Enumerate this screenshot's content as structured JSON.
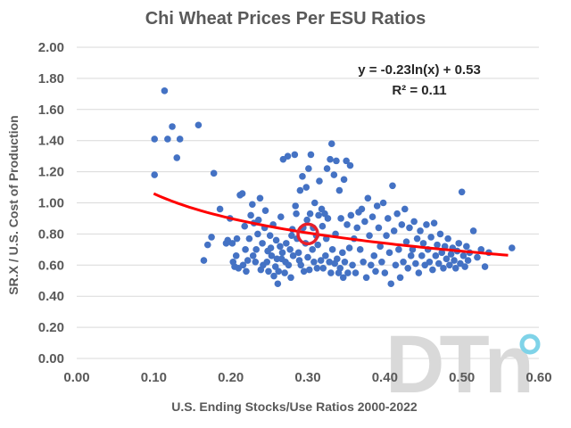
{
  "chart_data": {
    "type": "scatter",
    "title": "Chi Wheat Prices Per ESU Ratios",
    "xlabel": "U.S. Ending Stocks/Use Ratios 2000-2022",
    "ylabel": "SR.X / U.S. Cost of Production",
    "xlim": [
      0.0,
      0.6
    ],
    "ylim": [
      0.0,
      2.0
    ],
    "x_ticks": [
      "0.00",
      "0.10",
      "0.20",
      "0.30",
      "0.40",
      "0.50",
      "0.60"
    ],
    "y_ticks": [
      "0.00",
      "0.20",
      "0.40",
      "0.60",
      "0.80",
      "1.00",
      "1.20",
      "1.40",
      "1.60",
      "1.80",
      "2.00"
    ],
    "grid": {
      "horizontal": true,
      "vertical": false
    },
    "colors": {
      "points": "#4472c4",
      "trendline": "#ff0000",
      "highlight": "#e8202a",
      "gridline": "#d9d9d9",
      "logo": "#d9d9d9",
      "logo_accent": "#7fd3e8"
    },
    "annotations": {
      "equation": "y = -0.23ln(x) + 0.53",
      "r_squared": "R² = 0.11"
    },
    "trendline": {
      "type": "logarithmic",
      "a": -0.23,
      "b": 0.53,
      "x_range": [
        0.1,
        0.56
      ]
    },
    "highlight": {
      "x": 0.3,
      "y": 0.8
    },
    "logo": {
      "text": "DTn"
    },
    "points": [
      [
        0.101,
        1.41
      ],
      [
        0.101,
        1.18
      ],
      [
        0.114,
        1.72
      ],
      [
        0.118,
        1.41
      ],
      [
        0.124,
        1.49
      ],
      [
        0.13,
        1.29
      ],
      [
        0.134,
        1.41
      ],
      [
        0.158,
        1.5
      ],
      [
        0.165,
        0.63
      ],
      [
        0.17,
        0.73
      ],
      [
        0.175,
        0.78
      ],
      [
        0.178,
        1.19
      ],
      [
        0.186,
        0.96
      ],
      [
        0.194,
        0.74
      ],
      [
        0.196,
        0.76
      ],
      [
        0.199,
        0.9
      ],
      [
        0.202,
        0.74
      ],
      [
        0.203,
        0.62
      ],
      [
        0.205,
        0.59
      ],
      [
        0.207,
        0.66
      ],
      [
        0.208,
        0.77
      ],
      [
        0.21,
        0.58
      ],
      [
        0.212,
        1.05
      ],
      [
        0.215,
        1.06
      ],
      [
        0.216,
        0.6
      ],
      [
        0.218,
        0.85
      ],
      [
        0.219,
        0.7
      ],
      [
        0.22,
        0.56
      ],
      [
        0.222,
        0.63
      ],
      [
        0.224,
        0.77
      ],
      [
        0.226,
        0.92
      ],
      [
        0.228,
        0.99
      ],
      [
        0.229,
        0.66
      ],
      [
        0.23,
        0.87
      ],
      [
        0.232,
        0.62
      ],
      [
        0.233,
        0.7
      ],
      [
        0.235,
        0.8
      ],
      [
        0.236,
        0.89
      ],
      [
        0.238,
        1.03
      ],
      [
        0.239,
        0.57
      ],
      [
        0.241,
        0.74
      ],
      [
        0.242,
        0.6
      ],
      [
        0.244,
        0.84
      ],
      [
        0.245,
        0.95
      ],
      [
        0.247,
        0.62
      ],
      [
        0.248,
        0.69
      ],
      [
        0.249,
        0.56
      ],
      [
        0.251,
        0.79
      ],
      [
        0.252,
        0.71
      ],
      [
        0.253,
        0.66
      ],
      [
        0.255,
        0.86
      ],
      [
        0.256,
        0.53
      ],
      [
        0.258,
        0.59
      ],
      [
        0.259,
        0.76
      ],
      [
        0.26,
        0.64
      ],
      [
        0.261,
        0.48
      ],
      [
        0.262,
        0.56
      ],
      [
        0.264,
        0.72
      ],
      [
        0.265,
        0.91
      ],
      [
        0.266,
        0.64
      ],
      [
        0.267,
        0.68
      ],
      [
        0.268,
        1.28
      ],
      [
        0.27,
        0.55
      ],
      [
        0.271,
        0.62
      ],
      [
        0.272,
        0.74
      ],
      [
        0.274,
        1.3
      ],
      [
        0.275,
        0.6
      ],
      [
        0.277,
        0.7
      ],
      [
        0.278,
        0.52
      ],
      [
        0.279,
        0.79
      ],
      [
        0.28,
        0.83
      ],
      [
        0.281,
        0.66
      ],
      [
        0.283,
        1.31
      ],
      [
        0.284,
        0.98
      ],
      [
        0.285,
        0.93
      ],
      [
        0.286,
        0.77
      ],
      [
        0.288,
        0.68
      ],
      [
        0.289,
        0.63
      ],
      [
        0.29,
        1.08
      ],
      [
        0.291,
        0.6
      ],
      [
        0.293,
        1.17
      ],
      [
        0.294,
        0.84
      ],
      [
        0.295,
        0.56
      ],
      [
        0.297,
        0.74
      ],
      [
        0.298,
        1.1
      ],
      [
        0.299,
        0.89
      ],
      [
        0.3,
        0.65
      ],
      [
        0.301,
        1.22
      ],
      [
        0.302,
        0.57
      ],
      [
        0.303,
        0.93
      ],
      [
        0.304,
        1.31
      ],
      [
        0.306,
        0.7
      ],
      [
        0.307,
        0.84
      ],
      [
        0.308,
        0.62
      ],
      [
        0.309,
        1.0
      ],
      [
        0.311,
        0.79
      ],
      [
        0.312,
        0.58
      ],
      [
        0.313,
        0.73
      ],
      [
        0.314,
        0.92
      ],
      [
        0.315,
        1.14
      ],
      [
        0.317,
        0.63
      ],
      [
        0.318,
        0.96
      ],
      [
        0.319,
        0.85
      ],
      [
        0.32,
        0.58
      ],
      [
        0.322,
        0.93
      ],
      [
        0.323,
        0.66
      ],
      [
        0.324,
        0.77
      ],
      [
        0.325,
        1.22
      ],
      [
        0.326,
        0.9
      ],
      [
        0.328,
        0.62
      ],
      [
        0.329,
        1.28
      ],
      [
        0.33,
        0.55
      ],
      [
        0.331,
        1.38
      ],
      [
        0.332,
        0.7
      ],
      [
        0.334,
        1.18
      ],
      [
        0.335,
        0.61
      ],
      [
        0.336,
        0.8
      ],
      [
        0.337,
        1.27
      ],
      [
        0.338,
        0.64
      ],
      [
        0.34,
        0.55
      ],
      [
        0.341,
        1.08
      ],
      [
        0.342,
        0.58
      ],
      [
        0.343,
        0.9
      ],
      [
        0.345,
        0.68
      ],
      [
        0.346,
        0.52
      ],
      [
        0.347,
        1.15
      ],
      [
        0.348,
        0.62
      ],
      [
        0.35,
        1.27
      ],
      [
        0.351,
        0.86
      ],
      [
        0.352,
        0.55
      ],
      [
        0.354,
        0.71
      ],
      [
        0.355,
        1.24
      ],
      [
        0.356,
        0.92
      ],
      [
        0.358,
        0.6
      ],
      [
        0.36,
        0.77
      ],
      [
        0.362,
        0.55
      ],
      [
        0.364,
        0.84
      ],
      [
        0.366,
        0.94
      ],
      [
        0.368,
        0.7
      ],
      [
        0.37,
        0.96
      ],
      [
        0.372,
        0.62
      ],
      [
        0.374,
        0.88
      ],
      [
        0.376,
        0.52
      ],
      [
        0.378,
        1.03
      ],
      [
        0.38,
        0.79
      ],
      [
        0.382,
        0.6
      ],
      [
        0.384,
        0.91
      ],
      [
        0.386,
        0.66
      ],
      [
        0.388,
        0.56
      ],
      [
        0.39,
        0.98
      ],
      [
        0.392,
        0.84
      ],
      [
        0.394,
        0.72
      ],
      [
        0.396,
        0.62
      ],
      [
        0.398,
        1.0
      ],
      [
        0.4,
        0.55
      ],
      [
        0.402,
        0.79
      ],
      [
        0.404,
        0.9
      ],
      [
        0.406,
        0.68
      ],
      [
        0.408,
        0.48
      ],
      [
        0.41,
        1.11
      ],
      [
        0.412,
        0.82
      ],
      [
        0.414,
        0.6
      ],
      [
        0.416,
        0.93
      ],
      [
        0.418,
        0.7
      ],
      [
        0.42,
        0.52
      ],
      [
        0.422,
        0.86
      ],
      [
        0.424,
        0.62
      ],
      [
        0.426,
        0.96
      ],
      [
        0.428,
        0.75
      ],
      [
        0.43,
        0.58
      ],
      [
        0.432,
        0.84
      ],
      [
        0.434,
        0.66
      ],
      [
        0.436,
        0.7
      ],
      [
        0.438,
        0.88
      ],
      [
        0.44,
        0.61
      ],
      [
        0.442,
        0.77
      ],
      [
        0.444,
        0.55
      ],
      [
        0.446,
        0.82
      ],
      [
        0.448,
        0.66
      ],
      [
        0.45,
        0.74
      ],
      [
        0.452,
        0.6
      ],
      [
        0.454,
        0.86
      ],
      [
        0.456,
        0.7
      ],
      [
        0.458,
        0.62
      ],
      [
        0.46,
        0.78
      ],
      [
        0.462,
        0.57
      ],
      [
        0.464,
        0.87
      ],
      [
        0.466,
        0.66
      ],
      [
        0.468,
        0.73
      ],
      [
        0.47,
        0.61
      ],
      [
        0.472,
        0.8
      ],
      [
        0.474,
        0.68
      ],
      [
        0.476,
        0.58
      ],
      [
        0.478,
        0.72
      ],
      [
        0.48,
        0.64
      ],
      [
        0.482,
        0.77
      ],
      [
        0.484,
        0.6
      ],
      [
        0.486,
        0.67
      ],
      [
        0.488,
        0.71
      ],
      [
        0.49,
        0.63
      ],
      [
        0.492,
        0.58
      ],
      [
        0.494,
        0.69
      ],
      [
        0.496,
        0.74
      ],
      [
        0.498,
        0.61
      ],
      [
        0.5,
        1.07
      ],
      [
        0.502,
        0.66
      ],
      [
        0.504,
        0.59
      ],
      [
        0.506,
        0.72
      ],
      [
        0.508,
        0.63
      ],
      [
        0.51,
        0.68
      ],
      [
        0.515,
        0.82
      ],
      [
        0.52,
        0.65
      ],
      [
        0.525,
        0.7
      ],
      [
        0.53,
        0.59
      ],
      [
        0.535,
        0.68
      ],
      [
        0.565,
        0.71
      ]
    ]
  }
}
